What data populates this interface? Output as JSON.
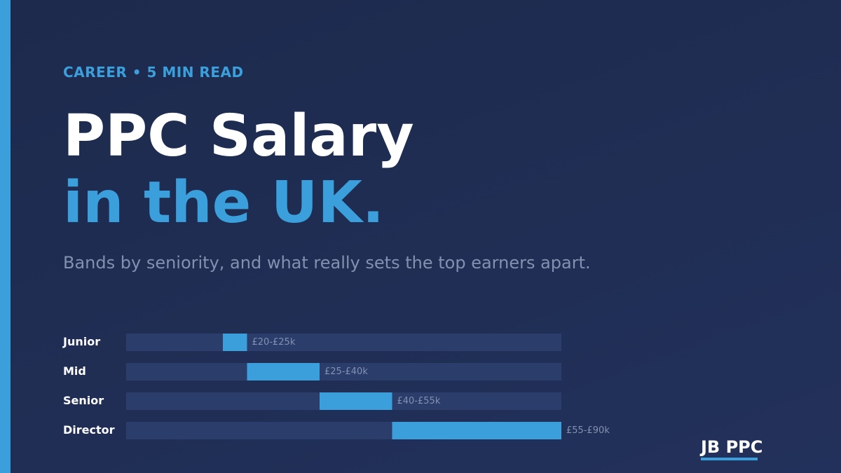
{
  "header": {
    "kicker": "CAREER • 5 MIN READ",
    "title_line1": "PPC Salary",
    "title_line2": "in the UK.",
    "subtitle": "Bands by seniority, and what really sets the top earners apart.",
    "logo": "JB PPC"
  },
  "chart_data": {
    "type": "range-bar",
    "categories": [
      "Junior",
      "Mid",
      "Senior",
      "Director"
    ],
    "low": [
      20,
      25,
      40,
      55
    ],
    "high": [
      25,
      40,
      55,
      90
    ],
    "value_labels": [
      "£20-£25k",
      "£25-£40k",
      "£40-£55k",
      "£55-£90k"
    ],
    "xlim": [
      0,
      90
    ],
    "color": "#3a9fdb",
    "track_color": "#2b3d6b"
  }
}
